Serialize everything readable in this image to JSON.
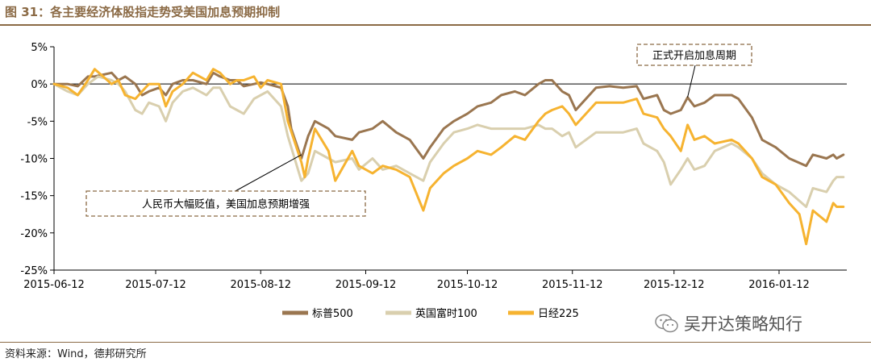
{
  "title": "图 31：各主要经济体股指走势受美国加息预期抑制",
  "source": "资料来源：Wind，德邦研究所",
  "watermark": "吴开达策略知行",
  "colors": {
    "brand": "#8B6A45",
    "sp500": "#9A7650",
    "ftse": "#D9CFAE",
    "nikkei": "#F6B330",
    "axis": "#000000"
  },
  "chart_data": {
    "type": "line",
    "x_ticks": [
      "2015-06-12",
      "2015-07-12",
      "2015-08-12",
      "2015-09-12",
      "2015-10-12",
      "2015-11-12",
      "2015-12-12",
      "2016-01-12"
    ],
    "y_ticks": [
      "5%",
      "0%",
      "-5%",
      "-10%",
      "-15%",
      "-20%",
      "-25%"
    ],
    "ylim": [
      -25,
      5
    ],
    "xlim": [
      "2015-06-12",
      "2016-02-01"
    ],
    "legend_position": "bottom",
    "grid": false,
    "annotations": [
      {
        "text": "人民币大幅贬值，美国加息预期增强",
        "target": {
          "x": "2015-08-24",
          "y": -9.5
        }
      },
      {
        "text": "正式开启加息周期",
        "target": {
          "x": "2015-12-16",
          "y": -1.8
        }
      }
    ],
    "series": [
      {
        "name": "标普500",
        "color": "#9A7650",
        "points": [
          [
            "2015-06-12",
            0
          ],
          [
            "2015-06-16",
            0
          ],
          [
            "2015-06-19",
            -0.3
          ],
          [
            "2015-06-22",
            1.0
          ],
          [
            "2015-06-24",
            1.0
          ],
          [
            "2015-06-29",
            1.5
          ],
          [
            "2015-07-01",
            0.5
          ],
          [
            "2015-07-03",
            1.0
          ],
          [
            "2015-07-06",
            0
          ],
          [
            "2015-07-08",
            -1.5
          ],
          [
            "2015-07-10",
            -1.0
          ],
          [
            "2015-07-13",
            -0.5
          ],
          [
            "2015-07-15",
            -1.5
          ],
          [
            "2015-07-17",
            0
          ],
          [
            "2015-07-20",
            0.5
          ],
          [
            "2015-07-23",
            0.5
          ],
          [
            "2015-07-27",
            0
          ],
          [
            "2015-07-29",
            1.5
          ],
          [
            "2015-07-31",
            1.0
          ],
          [
            "2015-08-03",
            0.5
          ],
          [
            "2015-08-05",
            0.5
          ],
          [
            "2015-08-07",
            -0.3
          ],
          [
            "2015-08-10",
            0
          ],
          [
            "2015-08-12",
            0.2
          ],
          [
            "2015-08-14",
            0
          ],
          [
            "2015-08-18",
            -0.5
          ],
          [
            "2015-08-20",
            -3.0
          ],
          [
            "2015-08-21",
            -6.0
          ],
          [
            "2015-08-24",
            -10.0
          ],
          [
            "2015-08-26",
            -7.0
          ],
          [
            "2015-08-28",
            -5.0
          ],
          [
            "2015-09-01",
            -6.0
          ],
          [
            "2015-09-03",
            -7.0
          ],
          [
            "2015-09-08",
            -7.5
          ],
          [
            "2015-09-10",
            -6.5
          ],
          [
            "2015-09-14",
            -6.0
          ],
          [
            "2015-09-17",
            -5.0
          ],
          [
            "2015-09-21",
            -6.5
          ],
          [
            "2015-09-25",
            -7.5
          ],
          [
            "2015-09-29",
            -10.0
          ],
          [
            "2015-10-01",
            -8.5
          ],
          [
            "2015-10-05",
            -6.0
          ],
          [
            "2015-10-08",
            -5.0
          ],
          [
            "2015-10-12",
            -4.0
          ],
          [
            "2015-10-15",
            -3.0
          ],
          [
            "2015-10-19",
            -2.5
          ],
          [
            "2015-10-22",
            -1.5
          ],
          [
            "2015-10-26",
            -1.0
          ],
          [
            "2015-10-29",
            -1.5
          ],
          [
            "2015-11-02",
            0
          ],
          [
            "2015-11-04",
            0.5
          ],
          [
            "2015-11-06",
            0.5
          ],
          [
            "2015-11-09",
            -1.0
          ],
          [
            "2015-11-11",
            -1.5
          ],
          [
            "2015-11-13",
            -3.5
          ],
          [
            "2015-11-16",
            -2.0
          ],
          [
            "2015-11-19",
            -0.5
          ],
          [
            "2015-11-23",
            -0.3
          ],
          [
            "2015-11-27",
            -0.5
          ],
          [
            "2015-12-01",
            -0.3
          ],
          [
            "2015-12-03",
            -2.0
          ],
          [
            "2015-12-07",
            -1.5
          ],
          [
            "2015-12-09",
            -3.5
          ],
          [
            "2015-12-11",
            -4.0
          ],
          [
            "2015-12-14",
            -3.5
          ],
          [
            "2015-12-16",
            -1.8
          ],
          [
            "2015-12-18",
            -3.0
          ],
          [
            "2015-12-21",
            -2.5
          ],
          [
            "2015-12-24",
            -1.5
          ],
          [
            "2015-12-29",
            -1.5
          ],
          [
            "2015-12-31",
            -2.0
          ],
          [
            "2016-01-04",
            -4.5
          ],
          [
            "2016-01-07",
            -7.5
          ],
          [
            "2016-01-11",
            -8.5
          ],
          [
            "2016-01-15",
            -10.0
          ],
          [
            "2016-01-20",
            -11.0
          ],
          [
            "2016-01-22",
            -9.5
          ],
          [
            "2016-01-26",
            -10.0
          ],
          [
            "2016-01-28",
            -9.5
          ],
          [
            "2016-01-29",
            -10.0
          ],
          [
            "2016-01-31",
            -9.5
          ]
        ]
      },
      {
        "name": "英国富时100",
        "color": "#D9CFAE",
        "points": [
          [
            "2015-06-12",
            0
          ],
          [
            "2015-06-16",
            -1.0
          ],
          [
            "2015-06-19",
            -1.5
          ],
          [
            "2015-06-22",
            0
          ],
          [
            "2015-06-25",
            1.0
          ],
          [
            "2015-06-29",
            0.5
          ],
          [
            "2015-07-01",
            0
          ],
          [
            "2015-07-03",
            -1.0
          ],
          [
            "2015-07-06",
            -3.5
          ],
          [
            "2015-07-08",
            -4.0
          ],
          [
            "2015-07-10",
            -2.5
          ],
          [
            "2015-07-13",
            -3.0
          ],
          [
            "2015-07-15",
            -5.0
          ],
          [
            "2015-07-17",
            -2.5
          ],
          [
            "2015-07-20",
            -1.0
          ],
          [
            "2015-07-23",
            -0.5
          ],
          [
            "2015-07-27",
            -1.5
          ],
          [
            "2015-07-29",
            -0.5
          ],
          [
            "2015-07-31",
            -0.5
          ],
          [
            "2015-08-03",
            -3.0
          ],
          [
            "2015-08-05",
            -3.5
          ],
          [
            "2015-08-07",
            -4.0
          ],
          [
            "2015-08-10",
            -2.0
          ],
          [
            "2015-08-12",
            -1.5
          ],
          [
            "2015-08-14",
            -1.0
          ],
          [
            "2015-08-18",
            -3.0
          ],
          [
            "2015-08-20",
            -7.0
          ],
          [
            "2015-08-24",
            -13.0
          ],
          [
            "2015-08-26",
            -12.0
          ],
          [
            "2015-08-28",
            -9.0
          ],
          [
            "2015-09-01",
            -10.0
          ],
          [
            "2015-09-03",
            -10.5
          ],
          [
            "2015-09-08",
            -10.0
          ],
          [
            "2015-09-10",
            -11.5
          ],
          [
            "2015-09-14",
            -10.0
          ],
          [
            "2015-09-17",
            -11.5
          ],
          [
            "2015-09-21",
            -11.0
          ],
          [
            "2015-09-25",
            -12.0
          ],
          [
            "2015-09-29",
            -13.0
          ],
          [
            "2015-10-01",
            -10.5
          ],
          [
            "2015-10-05",
            -8.0
          ],
          [
            "2015-10-08",
            -6.5
          ],
          [
            "2015-10-12",
            -6.0
          ],
          [
            "2015-10-15",
            -5.5
          ],
          [
            "2015-10-19",
            -6.0
          ],
          [
            "2015-10-22",
            -6.0
          ],
          [
            "2015-10-26",
            -6.0
          ],
          [
            "2015-10-29",
            -6.0
          ],
          [
            "2015-11-02",
            -5.5
          ],
          [
            "2015-11-04",
            -6.0
          ],
          [
            "2015-11-06",
            -6.0
          ],
          [
            "2015-11-09",
            -7.0
          ],
          [
            "2015-11-11",
            -6.5
          ],
          [
            "2015-11-13",
            -8.5
          ],
          [
            "2015-11-16",
            -7.5
          ],
          [
            "2015-11-19",
            -6.5
          ],
          [
            "2015-11-23",
            -6.5
          ],
          [
            "2015-11-27",
            -6.5
          ],
          [
            "2015-12-01",
            -6.0
          ],
          [
            "2015-12-03",
            -8.0
          ],
          [
            "2015-12-07",
            -9.0
          ],
          [
            "2015-12-09",
            -10.5
          ],
          [
            "2015-12-11",
            -13.5
          ],
          [
            "2015-12-14",
            -11.5
          ],
          [
            "2015-12-16",
            -10.0
          ],
          [
            "2015-12-18",
            -11.5
          ],
          [
            "2015-12-21",
            -11.0
          ],
          [
            "2015-12-24",
            -9.0
          ],
          [
            "2015-12-29",
            -8.0
          ],
          [
            "2015-12-31",
            -8.5
          ],
          [
            "2016-01-04",
            -10.0
          ],
          [
            "2016-01-07",
            -12.0
          ],
          [
            "2016-01-11",
            -13.5
          ],
          [
            "2016-01-15",
            -14.5
          ],
          [
            "2016-01-20",
            -16.5
          ],
          [
            "2016-01-22",
            -14.0
          ],
          [
            "2016-01-26",
            -14.5
          ],
          [
            "2016-01-28",
            -13.0
          ],
          [
            "2016-01-29",
            -12.5
          ],
          [
            "2016-01-31",
            -12.5
          ]
        ]
      },
      {
        "name": "日经225",
        "color": "#F6B330",
        "points": [
          [
            "2015-06-12",
            0
          ],
          [
            "2015-06-16",
            -0.5
          ],
          [
            "2015-06-19",
            -1.5
          ],
          [
            "2015-06-22",
            0.5
          ],
          [
            "2015-06-24",
            2.0
          ],
          [
            "2015-06-29",
            0
          ],
          [
            "2015-07-01",
            0.5
          ],
          [
            "2015-07-03",
            -1.5
          ],
          [
            "2015-07-06",
            -2.0
          ],
          [
            "2015-07-08",
            -1.0
          ],
          [
            "2015-07-10",
            0
          ],
          [
            "2015-07-13",
            0
          ],
          [
            "2015-07-15",
            -3.0
          ],
          [
            "2015-07-17",
            -1.0
          ],
          [
            "2015-07-20",
            0
          ],
          [
            "2015-07-23",
            1.5
          ],
          [
            "2015-07-27",
            0.5
          ],
          [
            "2015-07-29",
            2.0
          ],
          [
            "2015-07-31",
            1.5
          ],
          [
            "2015-08-03",
            0
          ],
          [
            "2015-08-05",
            0.5
          ],
          [
            "2015-08-07",
            0.5
          ],
          [
            "2015-08-10",
            1.0
          ],
          [
            "2015-08-12",
            -0.5
          ],
          [
            "2015-08-14",
            0.5
          ],
          [
            "2015-08-18",
            0
          ],
          [
            "2015-08-20",
            -5.0
          ],
          [
            "2015-08-24",
            -10.5
          ],
          [
            "2015-08-25",
            -12.5
          ],
          [
            "2015-08-26",
            -10.0
          ],
          [
            "2015-08-28",
            -6.0
          ],
          [
            "2015-09-01",
            -9.0
          ],
          [
            "2015-09-03",
            -13.0
          ],
          [
            "2015-09-08",
            -9.0
          ],
          [
            "2015-09-10",
            -11.0
          ],
          [
            "2015-09-14",
            -12.0
          ],
          [
            "2015-09-17",
            -11.0
          ],
          [
            "2015-09-21",
            -11.5
          ],
          [
            "2015-09-25",
            -12.5
          ],
          [
            "2015-09-29",
            -17.0
          ],
          [
            "2015-10-01",
            -14.0
          ],
          [
            "2015-10-05",
            -12.0
          ],
          [
            "2015-10-08",
            -11.0
          ],
          [
            "2015-10-12",
            -10.0
          ],
          [
            "2015-10-15",
            -9.0
          ],
          [
            "2015-10-19",
            -9.5
          ],
          [
            "2015-10-22",
            -8.5
          ],
          [
            "2015-10-26",
            -7.0
          ],
          [
            "2015-10-29",
            -7.5
          ],
          [
            "2015-11-02",
            -5.0
          ],
          [
            "2015-11-04",
            -4.0
          ],
          [
            "2015-11-06",
            -3.5
          ],
          [
            "2015-11-09",
            -3.0
          ],
          [
            "2015-11-11",
            -4.0
          ],
          [
            "2015-11-13",
            -5.5
          ],
          [
            "2015-11-16",
            -4.0
          ],
          [
            "2015-11-19",
            -2.5
          ],
          [
            "2015-11-23",
            -2.5
          ],
          [
            "2015-11-27",
            -2.5
          ],
          [
            "2015-12-01",
            -2.0
          ],
          [
            "2015-12-03",
            -4.0
          ],
          [
            "2015-12-07",
            -4.5
          ],
          [
            "2015-12-09",
            -6.0
          ],
          [
            "2015-12-11",
            -7.0
          ],
          [
            "2015-12-14",
            -9.0
          ],
          [
            "2015-12-16",
            -5.5
          ],
          [
            "2015-12-18",
            -7.5
          ],
          [
            "2015-12-21",
            -7.0
          ],
          [
            "2015-12-24",
            -8.0
          ],
          [
            "2015-12-29",
            -7.5
          ],
          [
            "2015-12-31",
            -8.0
          ],
          [
            "2016-01-04",
            -10.0
          ],
          [
            "2016-01-07",
            -12.5
          ],
          [
            "2016-01-11",
            -13.5
          ],
          [
            "2016-01-15",
            -16.0
          ],
          [
            "2016-01-18",
            -17.5
          ],
          [
            "2016-01-20",
            -21.5
          ],
          [
            "2016-01-22",
            -17.0
          ],
          [
            "2016-01-26",
            -18.5
          ],
          [
            "2016-01-28",
            -16.0
          ],
          [
            "2016-01-29",
            -16.5
          ],
          [
            "2016-01-31",
            -16.5
          ]
        ]
      }
    ]
  }
}
